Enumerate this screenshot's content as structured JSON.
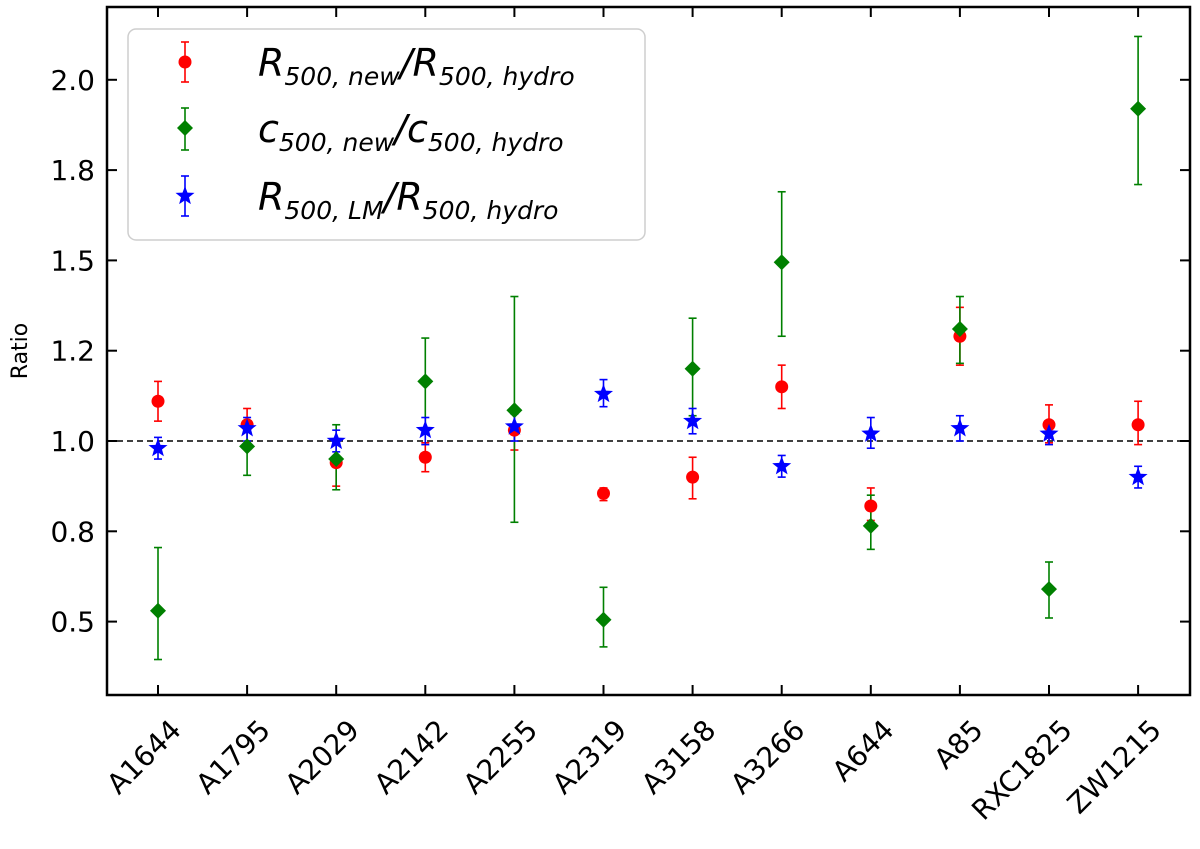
{
  "chart_data": {
    "type": "scatter",
    "title": "",
    "xlabel": "",
    "ylabel": "Ratio",
    "ylim": [
      0.35,
      2.15
    ],
    "reference_line": 1.0,
    "categories": [
      "A1644",
      "A1795",
      "A2029",
      "A2142",
      "A2255",
      "A2319",
      "A3158",
      "A3266",
      "A644",
      "A85",
      "RXC1825",
      "ZW1215"
    ],
    "y_ticks": [
      0.5,
      0.75,
      1.0,
      1.25,
      1.5,
      1.75,
      2.0
    ],
    "y_tick_labels": [
      "0.5",
      "0.8",
      "1.0",
      "1.2",
      "1.5",
      "1.8",
      "2.0"
    ],
    "legend_position": "top-left",
    "series": [
      {
        "name": "R500,new/R500,hydro",
        "legend": {
          "base": "R",
          "sub1": "500, new",
          "mid": "/R",
          "sub2": "500, hydro"
        },
        "marker": "circle",
        "color": "#ff0000",
        "offset": 0.0,
        "values": [
          1.11,
          1.045,
          0.94,
          0.955,
          1.03,
          0.855,
          0.9,
          1.15,
          0.82,
          1.29,
          1.045,
          1.045
        ],
        "err_low": [
          1.055,
          0.99,
          0.875,
          0.915,
          0.975,
          0.835,
          0.84,
          1.09,
          0.78,
          1.21,
          0.995,
          0.99
        ],
        "err_high": [
          1.165,
          1.09,
          1.0,
          0.995,
          1.08,
          0.87,
          0.955,
          1.21,
          0.87,
          1.37,
          1.1,
          1.11
        ]
      },
      {
        "name": "c500,new/c500,hydro",
        "legend": {
          "base": "c",
          "sub1": "500, new",
          "mid": "/c",
          "sub2": "500, hydro"
        },
        "marker": "diamond",
        "color": "#008000",
        "offset": 0.0,
        "values": [
          0.53,
          0.985,
          0.95,
          1.165,
          1.085,
          0.505,
          1.2,
          1.495,
          0.765,
          1.31,
          0.59,
          1.92
        ],
        "err_low": [
          0.395,
          0.905,
          0.865,
          1.035,
          0.775,
          0.43,
          1.07,
          1.29,
          0.7,
          1.215,
          0.51,
          1.71
        ],
        "err_high": [
          0.705,
          1.05,
          1.045,
          1.285,
          1.4,
          0.595,
          1.34,
          1.69,
          0.85,
          1.4,
          0.665,
          2.12
        ]
      },
      {
        "name": "R500,LM/R500,hydro",
        "legend": {
          "base": "R",
          "sub1": "500, LM",
          "mid": "/R",
          "sub2": "500, hydro"
        },
        "marker": "star",
        "color": "#0000ff",
        "offset": 0.0,
        "values": [
          0.98,
          1.035,
          1.0,
          1.03,
          1.04,
          1.13,
          1.055,
          0.93,
          1.02,
          1.035,
          1.02,
          0.9
        ],
        "err_low": [
          0.95,
          1.0,
          0.97,
          0.99,
          1.0,
          1.095,
          1.02,
          0.9,
          0.98,
          1.0,
          0.99,
          0.87
        ],
        "err_high": [
          1.01,
          1.065,
          1.03,
          1.065,
          1.075,
          1.17,
          1.09,
          0.96,
          1.065,
          1.07,
          1.05,
          0.93
        ]
      }
    ]
  }
}
